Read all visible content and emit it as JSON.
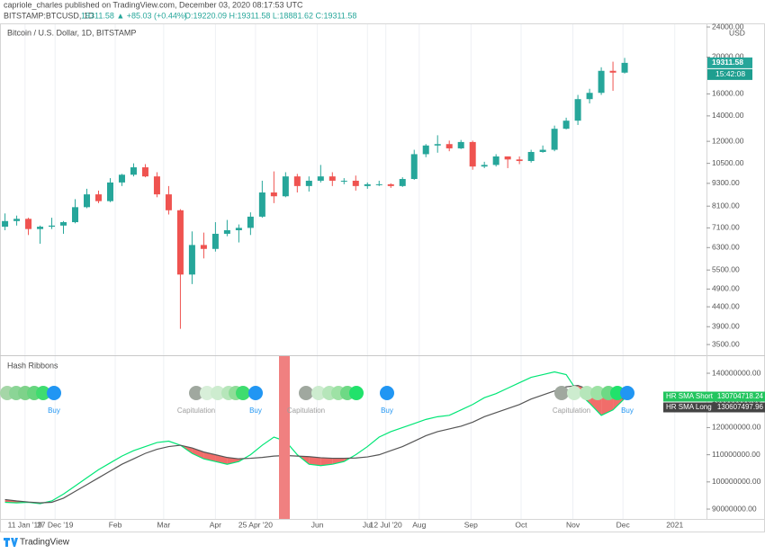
{
  "header": {
    "publisher": "capriole_charles published on TradingView.com, December 03, 2020 08:17:53 UTC",
    "symbol": "BITSTAMP:BTCUSD, 1D",
    "change": "19311.58 ▲ +85.03 (+0.44%)",
    "ohlc": "O:19220.09 H:19311.58 L:18881.62 C:19311.58"
  },
  "chart_data": [
    {
      "type": "candlestick",
      "title": "Bitcoin / U.S. Dollar, 1D, BITSTAMP",
      "currency": "USD",
      "countdown": "15:42:08",
      "log_scale": true,
      "up_color": "#26a69a",
      "down_color": "#ef5350",
      "x": [
        -35,
        -28,
        -21,
        -14,
        -7,
        0,
        7,
        14,
        21,
        28,
        35,
        42,
        49,
        56,
        63,
        70,
        77,
        84,
        91,
        98,
        105,
        112,
        119,
        126,
        133,
        140,
        147,
        154,
        161,
        168,
        175,
        182,
        189,
        196,
        203,
        210,
        217,
        224,
        231,
        238,
        245,
        252,
        259,
        266,
        273,
        280,
        287,
        294,
        301,
        308,
        315,
        322,
        329,
        336
      ],
      "open": [
        7150,
        7400,
        7500,
        7050,
        7150,
        7200,
        7350,
        8050,
        8700,
        8350,
        9350,
        9800,
        10250,
        9700,
        8700,
        7900,
        5350,
        6400,
        6250,
        6850,
        7000,
        7100,
        7600,
        8800,
        8600,
        9700,
        9150,
        9450,
        9700,
        9450,
        9450,
        9150,
        9250,
        9250,
        9150,
        9550,
        11100,
        11700,
        11800,
        11500,
        11950,
        10300,
        10400,
        10950,
        10750,
        10650,
        11250,
        11400,
        12950,
        13600,
        15500,
        16100,
        18400,
        18200
      ],
      "high": [
        7750,
        7650,
        7550,
        7200,
        7550,
        7400,
        8450,
        9000,
        8900,
        9600,
        9850,
        10500,
        10450,
        9950,
        9150,
        7950,
        6950,
        6900,
        7350,
        7450,
        7250,
        7800,
        9450,
        10000,
        9950,
        9850,
        9700,
        10400,
        9950,
        9600,
        9750,
        9350,
        9450,
        9300,
        9650,
        11400,
        11800,
        12450,
        12050,
        12100,
        12050,
        10600,
        11100,
        10950,
        10950,
        11400,
        11700,
        13200,
        13850,
        15900,
        16500,
        18800,
        19450,
        19900
      ],
      "low": [
        7000,
        7200,
        6800,
        6450,
        7050,
        6850,
        7300,
        8000,
        8250,
        8300,
        9150,
        9700,
        9650,
        8550,
        7700,
        3850,
        5050,
        5900,
        6150,
        6750,
        6500,
        6800,
        7550,
        8250,
        8550,
        8800,
        8850,
        9350,
        9150,
        9250,
        8900,
        9000,
        9150,
        9050,
        9100,
        9500,
        10900,
        11200,
        11300,
        11450,
        10100,
        10200,
        10300,
        10200,
        10450,
        10550,
        11200,
        11300,
        12900,
        13250,
        15100,
        15900,
        16300,
        18100
      ],
      "close": [
        7400,
        7500,
        7050,
        7150,
        7200,
        7350,
        8050,
        8700,
        8350,
        9350,
        9800,
        10250,
        9700,
        8700,
        7900,
        5350,
        6400,
        6250,
        6850,
        7000,
        7100,
        7600,
        8800,
        8600,
        9700,
        9150,
        9450,
        9700,
        9450,
        9450,
        9150,
        9250,
        9250,
        9150,
        9550,
        11100,
        11700,
        11800,
        11500,
        11950,
        10300,
        10400,
        10950,
        10750,
        10650,
        11250,
        11400,
        12950,
        13600,
        15500,
        16100,
        18400,
        18200,
        19311.58
      ],
      "ylim": [
        3280,
        24400
      ],
      "yticks": [
        {
          "value": 3500,
          "label": "3500.00"
        },
        {
          "value": 3900,
          "label": "3900.00"
        },
        {
          "value": 4400,
          "label": "4400.00"
        },
        {
          "value": 4900,
          "label": "4900.00"
        },
        {
          "value": 5500,
          "label": "5500.00"
        },
        {
          "value": 6300,
          "label": "6300.00"
        },
        {
          "value": 7100,
          "label": "7100.00"
        },
        {
          "value": 8100,
          "label": "8100.00"
        },
        {
          "value": 9300,
          "label": "9300.00"
        },
        {
          "value": 10500,
          "label": "10500.00"
        },
        {
          "value": 12000,
          "label": "12000.00"
        },
        {
          "value": 14000,
          "label": "14000.00"
        },
        {
          "value": 16000,
          "label": "16000.00"
        },
        {
          "value": 20000,
          "label": "20000.00"
        },
        {
          "value": 24000,
          "label": "24000.00"
        }
      ],
      "xlim": [
        -38,
        385
      ],
      "xticks": [
        {
          "value": -23,
          "label": "11 Jan '19"
        },
        {
          "value": -5,
          "label": "27 Dec '19"
        },
        {
          "value": 31,
          "label": "Feb"
        },
        {
          "value": 60,
          "label": "Mar"
        },
        {
          "value": 91,
          "label": "Apr"
        },
        {
          "value": 115,
          "label": "25 Apr '20"
        },
        {
          "value": 152,
          "label": "Jun"
        },
        {
          "value": 182,
          "label": "Jul"
        },
        {
          "value": 193,
          "label": "12 Jul '20"
        },
        {
          "value": 213,
          "label": "Aug"
        },
        {
          "value": 244,
          "label": "Sep"
        },
        {
          "value": 274,
          "label": "Oct"
        },
        {
          "value": 305,
          "label": "Nov"
        },
        {
          "value": 335,
          "label": "Dec"
        },
        {
          "value": 366,
          "label": "2021"
        }
      ]
    },
    {
      "type": "line",
      "title": "Hash Ribbons",
      "fill_color": "#ef5350",
      "x": [
        -35,
        -28,
        -21,
        -14,
        -7,
        0,
        7,
        14,
        21,
        28,
        35,
        42,
        49,
        56,
        63,
        70,
        77,
        84,
        91,
        98,
        105,
        112,
        119,
        126,
        133,
        140,
        147,
        154,
        161,
        168,
        175,
        182,
        189,
        196,
        203,
        210,
        217,
        224,
        231,
        238,
        245,
        252,
        259,
        266,
        273,
        280,
        287,
        294,
        301,
        308,
        315,
        322,
        329,
        336
      ],
      "series": [
        {
          "name": "HR SMA Short",
          "color": "#00e676",
          "values": [
            92500000,
            92300000,
            92500000,
            92000000,
            93000000,
            95500000,
            98500000,
            101500000,
            104500000,
            107000000,
            109500000,
            111500000,
            113000000,
            114500000,
            115000000,
            113500000,
            110500000,
            108500000,
            107500000,
            106500000,
            107500000,
            110000000,
            113500000,
            116500000,
            115000000,
            110000000,
            106500000,
            106000000,
            106500000,
            107500000,
            110000000,
            113000000,
            116500000,
            118500000,
            120000000,
            121500000,
            123000000,
            124000000,
            124500000,
            126500000,
            128500000,
            131000000,
            132500000,
            134500000,
            136500000,
            138500000,
            139500000,
            140500000,
            139500000,
            133000000,
            129000000,
            124500000,
            126500000,
            130704718.24
          ]
        },
        {
          "name": "HR SMA Long",
          "color": "#555555",
          "values": [
            93500000,
            93000000,
            92600000,
            92300000,
            92500000,
            94000000,
            96500000,
            99000000,
            101500000,
            104000000,
            106500000,
            108500000,
            110500000,
            112000000,
            113000000,
            113500000,
            112500000,
            111000000,
            110000000,
            109000000,
            108500000,
            108700000,
            109000000,
            109500000,
            109700000,
            109500000,
            109300000,
            108900000,
            108700000,
            108700000,
            108800000,
            109200000,
            110000000,
            111500000,
            113000000,
            115000000,
            117000000,
            118500000,
            119500000,
            120500000,
            122000000,
            124000000,
            125500000,
            127000000,
            128500000,
            130500000,
            132000000,
            133500000,
            135000000,
            135500000,
            134000000,
            132500000,
            131500000,
            130607497.96
          ]
        }
      ],
      "ylim": [
        86700000,
        146300000
      ],
      "yticks": [
        {
          "value": 90000000,
          "label": "90000000.00"
        },
        {
          "value": 100000000,
          "label": "100000000.00"
        },
        {
          "value": 110000000,
          "label": "110000000.00"
        },
        {
          "value": 120000000,
          "label": "120000000.00"
        },
        {
          "value": 130000000,
          "label": "130000000.00"
        },
        {
          "value": 140000000,
          "label": "140000000.00"
        }
      ],
      "annotations": [
        "Buy",
        "Capitulation",
        "Buy",
        "Capitulation",
        "Buy",
        "Capitulation",
        "Buy"
      ]
    }
  ],
  "footer": {
    "brand": "TradingView"
  }
}
